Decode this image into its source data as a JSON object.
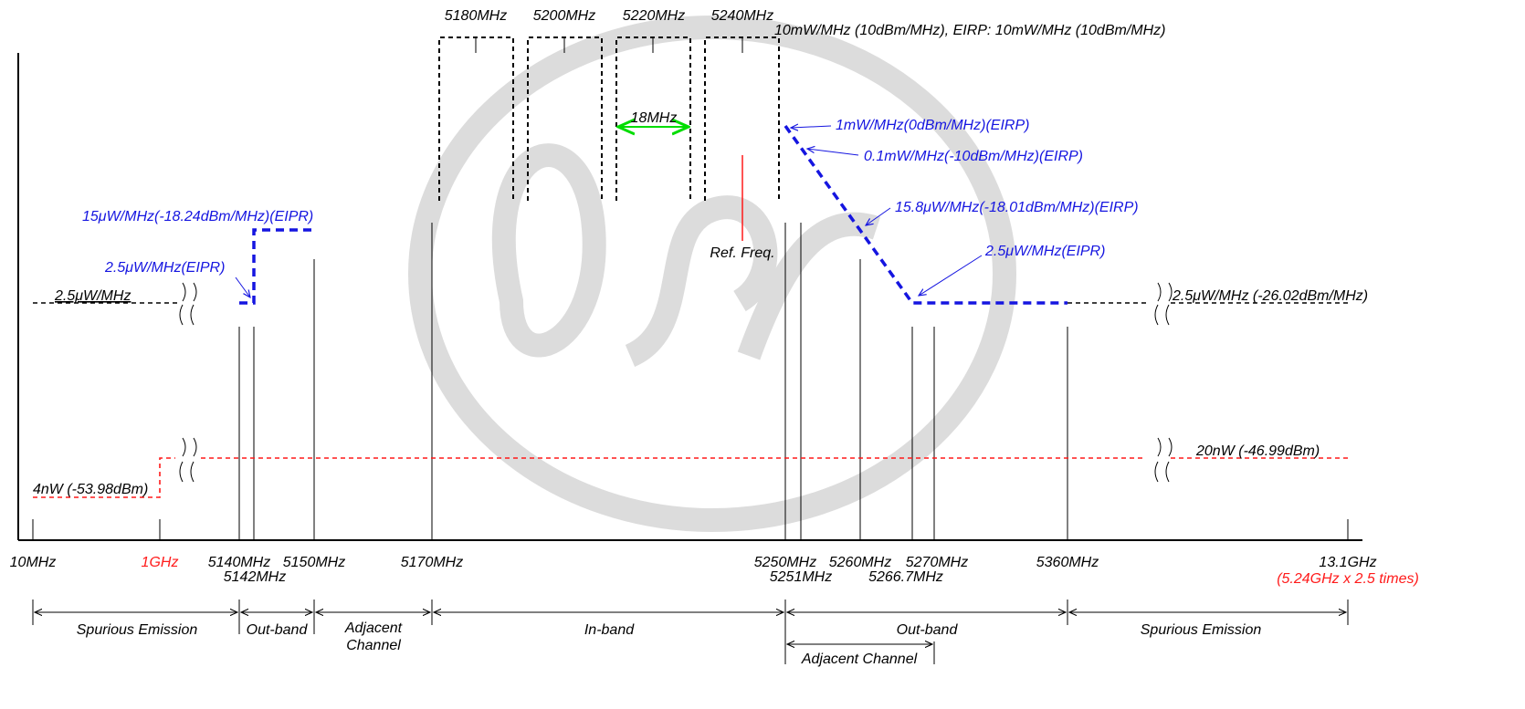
{
  "colors": {
    "black": "#000000",
    "blue": "#1515e0",
    "red": "#ff1a1a",
    "green": "#00dd00",
    "watermark": "#d6d6d6"
  },
  "channels": [
    "5180MHz",
    "5200MHz",
    "5220MHz",
    "5240MHz"
  ],
  "top_note": "10mW/MHz (10dBm/MHz), EIRP: 10mW/MHz (10dBm/MHz)",
  "bandwidth_label": "18MHz",
  "ref_freq_label": "Ref. Freq.",
  "blue_labels": {
    "left_high": "15μW/MHz(-18.24dBm/MHz)(EIPR)",
    "left_low": "2.5μW/MHz(EIPR)",
    "right_1": "1mW/MHz(0dBm/MHz)(EIRP)",
    "right_2": "0.1mW/MHz(-10dBm/MHz)(EIRP)",
    "right_3": "15.8μW/MHz(-18.01dBm/MHz)(EIRP)",
    "right_4": "2.5μW/MHz(EIPR)"
  },
  "black_labels": {
    "left_spurious": "2.5μW/MHz",
    "right_spurious": "2.5μW/MHz (-26.02dBm/MHz)",
    "left_red": "4nW (-53.98dBm)",
    "right_red": "20nW (-46.99dBm)"
  },
  "axis_labels": {
    "f10": "10MHz",
    "f1g": "1GHz",
    "f5140": "5140MHz",
    "f5142": "5142MHz",
    "f5150": "5150MHz",
    "f5170": "5170MHz",
    "f5250": "5250MHz",
    "f5251": "5251MHz",
    "f5260": "5260MHz",
    "f5266": "5266.7MHz",
    "f5270": "5270MHz",
    "f5360": "5360MHz",
    "f13": "13.1GHz",
    "f13note": "(5.24GHz x 2.5 times)"
  },
  "regions": {
    "spurious_left": "Spurious Emission",
    "outband_left": "Out-band",
    "adjacent_1": "Adjacent",
    "adjacent_2": "Channel",
    "inband": "In-band",
    "outband_right": "Out-band",
    "spurious_right": "Spurious Emission",
    "adjacent_right": "Adjacent Channel"
  }
}
